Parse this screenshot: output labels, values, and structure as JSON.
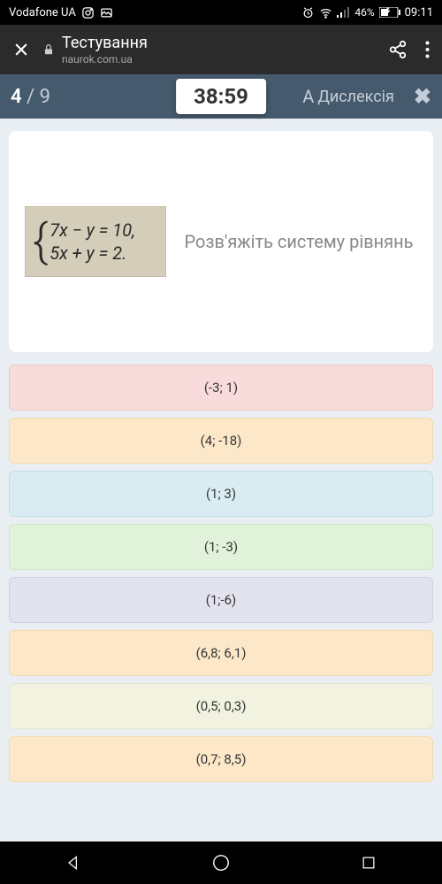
{
  "status": {
    "carrier": "Vodafone UA",
    "battery_pct": "46%",
    "time": "09:11"
  },
  "browser": {
    "title": "Тестування",
    "url": "naurok.com.ua"
  },
  "quiz": {
    "current": "4",
    "total": "9",
    "timer": "38:59",
    "dyslexia_label": "Дислексія"
  },
  "question": {
    "eq_line1": "7x − y = 10,",
    "eq_line2": "5x + y = 2.",
    "prompt": "Розв'яжіть систему рівнянь"
  },
  "answers": [
    {
      "label": "(-3; 1)",
      "bg": "#f7dcdb",
      "border": "#eec9c8"
    },
    {
      "label": "(4; -18)",
      "bg": "#fce8c9",
      "border": "#f0d9b0"
    },
    {
      "label": "(1; 3)",
      "bg": "#d9ecf2",
      "border": "#c3dde6"
    },
    {
      "label": "(1; -3)",
      "bg": "#e0f2d9",
      "border": "#cce6c3"
    },
    {
      "label": "(1;-6)",
      "bg": "#e3e3ef",
      "border": "#d1d1e3"
    },
    {
      "label": "(6,8; 6,1)",
      "bg": "#fce8c9",
      "border": "#f0d9b0"
    },
    {
      "label": "(0,5; 0,3)",
      "bg": "#f2f2e0",
      "border": "#e6e6cc"
    },
    {
      "label": "(0,7; 8,5)",
      "bg": "#fce8c9",
      "border": "#f0d9b0"
    }
  ]
}
